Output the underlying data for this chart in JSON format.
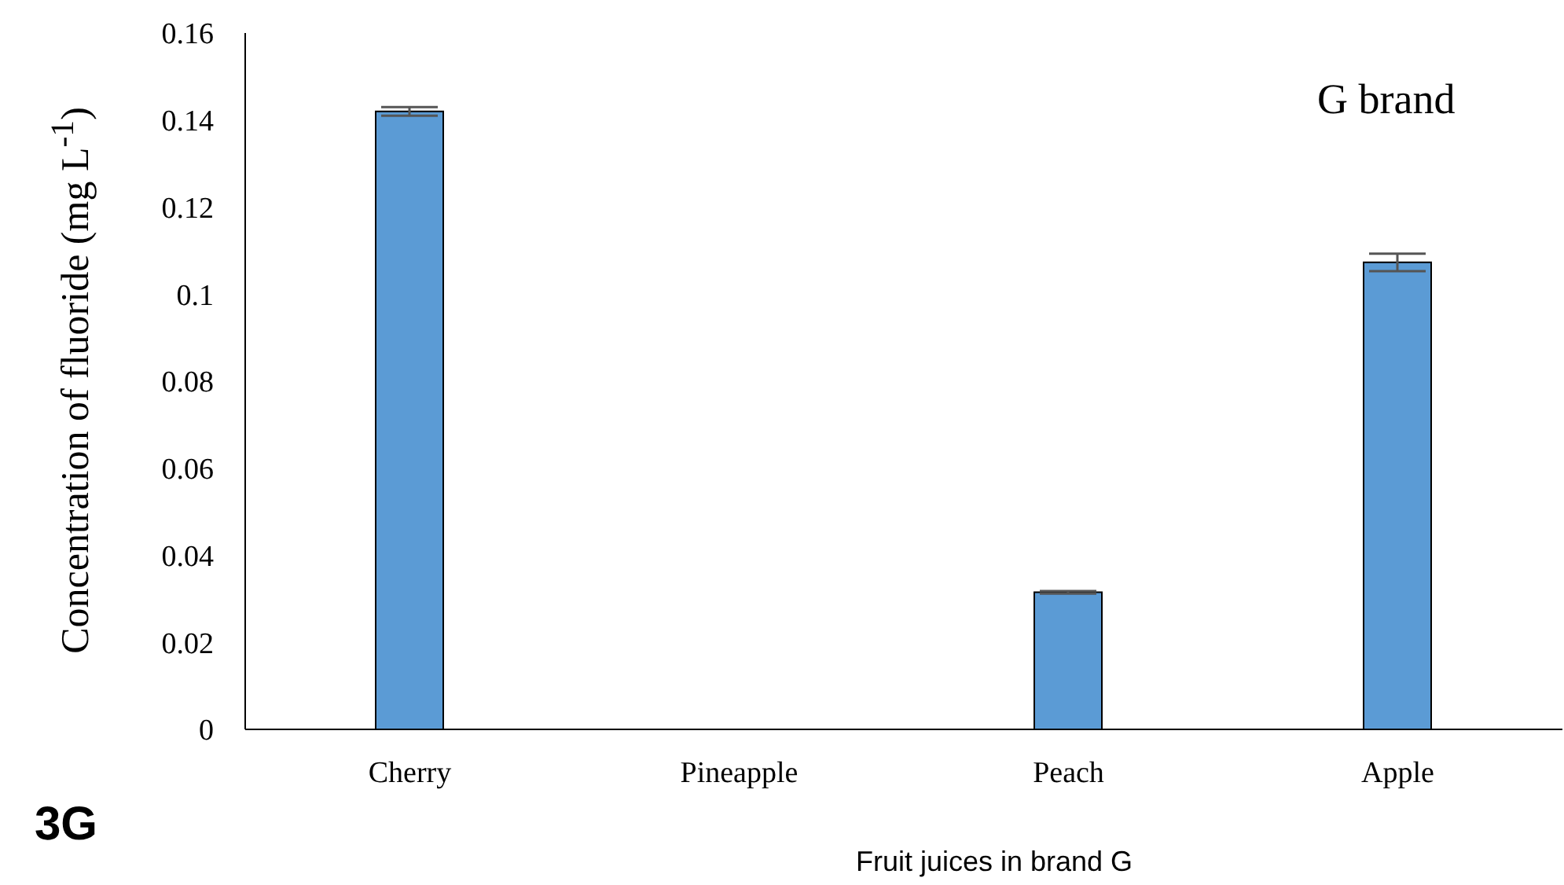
{
  "chart_data": {
    "type": "bar",
    "xlabel": "Fruit juices in brand G",
    "ylabel": "Concentration of fluoride (mg L$^{-1}$)",
    "categories": [
      "Cherry",
      "Pineapple",
      "Peach",
      "Apple"
    ],
    "values": [
      0.142,
      0,
      0.0315,
      0.1073
    ],
    "errors": [
      0.001,
      null,
      0.0003,
      0.002
    ],
    "color": "#5b9bd5",
    "ylim": [
      0,
      0.16
    ],
    "yticks": [
      0,
      0.02,
      0.04,
      0.06,
      0.08,
      0.1,
      0.12,
      0.14,
      0.16
    ],
    "annotations": [
      "G brand",
      "3G"
    ]
  }
}
